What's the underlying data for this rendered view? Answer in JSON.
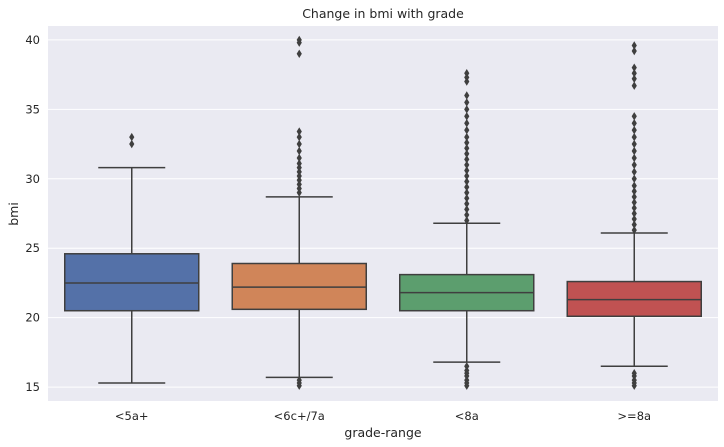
{
  "chart_data": {
    "type": "box",
    "title": "Change in bmi with grade",
    "xlabel": "grade-range",
    "ylabel": "bmi",
    "ylim": [
      14,
      41
    ],
    "yticks": [
      15,
      20,
      25,
      30,
      35,
      40
    ],
    "grid": true,
    "categories": [
      "<5a+",
      "<6c+/7a",
      "<8a",
      ">=8a"
    ],
    "boxes": [
      {
        "category": "<5a+",
        "color": "#5471a8",
        "whisker_low": 15.3,
        "q1": 20.5,
        "median": 22.5,
        "q3": 24.6,
        "whisker_high": 30.8,
        "outliers": [
          32.5,
          33.0
        ]
      },
      {
        "category": "<6c+/7a",
        "color": "#d08559",
        "whisker_low": 15.7,
        "q1": 20.6,
        "median": 22.2,
        "q3": 23.9,
        "whisker_high": 28.7,
        "outliers": [
          15.1,
          15.3,
          15.5,
          29.0,
          29.3,
          29.6,
          29.9,
          30.2,
          30.5,
          30.8,
          31.1,
          31.5,
          32.0,
          32.5,
          33.0,
          33.4,
          39.0,
          39.8,
          40.0
        ]
      },
      {
        "category": "<8a",
        "color": "#5c9e6e",
        "whisker_low": 16.8,
        "q1": 20.5,
        "median": 21.8,
        "q3": 23.1,
        "whisker_high": 26.8,
        "outliers": [
          15.1,
          15.3,
          15.5,
          15.8,
          16.0,
          16.2,
          16.5,
          27.0,
          27.4,
          27.8,
          28.2,
          28.6,
          29.0,
          29.4,
          29.8,
          30.2,
          30.6,
          31.0,
          31.4,
          31.8,
          32.2,
          32.6,
          33.0,
          33.5,
          34.0,
          34.5,
          35.0,
          35.5,
          36.0,
          37.0,
          37.3,
          37.6
        ]
      },
      {
        "category": ">=8a",
        "color": "#c05252",
        "whisker_low": 16.5,
        "q1": 20.1,
        "median": 21.3,
        "q3": 22.6,
        "whisker_high": 26.1,
        "outliers": [
          15.1,
          15.3,
          15.5,
          15.8,
          16.0,
          26.3,
          26.7,
          27.1,
          27.5,
          27.9,
          28.3,
          28.7,
          29.1,
          29.5,
          30.0,
          30.5,
          31.0,
          31.5,
          32.0,
          32.5,
          33.0,
          33.5,
          34.0,
          34.5,
          36.7,
          37.2,
          37.6,
          38.0,
          39.2,
          39.6
        ]
      }
    ]
  }
}
